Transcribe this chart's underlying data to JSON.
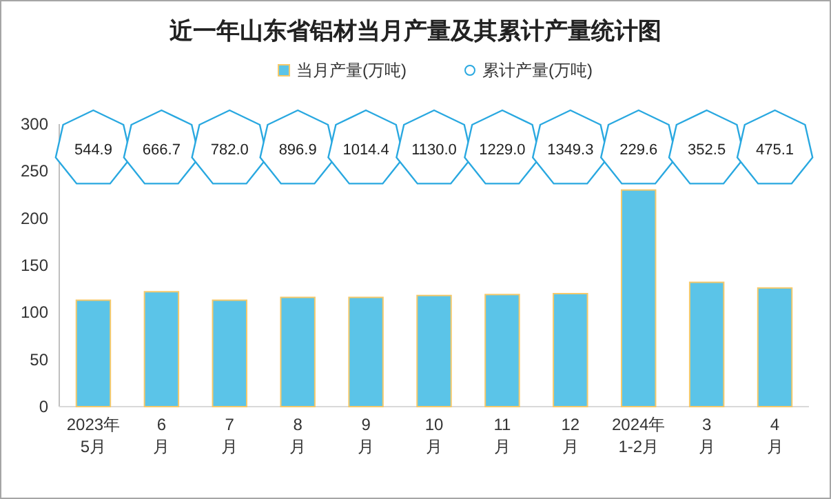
{
  "chart_data": [
    {
      "type": "bar",
      "title": "近一年山东省铝材当月产量及其累计产量统计图",
      "categories": [
        "2023年\n5月",
        "6\n月",
        "7\n月",
        "8\n月",
        "9\n月",
        "10\n月",
        "11\n月",
        "12\n月",
        "2024年\n1-2月",
        "3\n月",
        "4\n月"
      ],
      "series": [
        {
          "name": "当月产量(万吨)",
          "color": "#5bc4e8",
          "values": [
            113,
            122,
            113,
            116,
            116,
            118,
            119,
            120,
            230,
            132,
            126
          ]
        }
      ],
      "ylim": [
        0,
        300
      ],
      "yticks": [
        0,
        50,
        100,
        150,
        200,
        250,
        300
      ],
      "legend": "top"
    },
    {
      "type": "other",
      "series": [
        {
          "name": "累计产量(万吨)",
          "color": "#29a8e0",
          "values": [
            544.9,
            666.7,
            782.0,
            896.9,
            1014.4,
            1130.0,
            1229.0,
            1349.3,
            229.6,
            352.5,
            475.1
          ],
          "value_labels": [
            "544.9",
            "666.7",
            "782.0",
            "896.9",
            "1014.4",
            "1130.0",
            "1229.0",
            "1349.3",
            "229.6",
            "352.5",
            "475.1"
          ]
        }
      ],
      "legend": "top"
    }
  ]
}
